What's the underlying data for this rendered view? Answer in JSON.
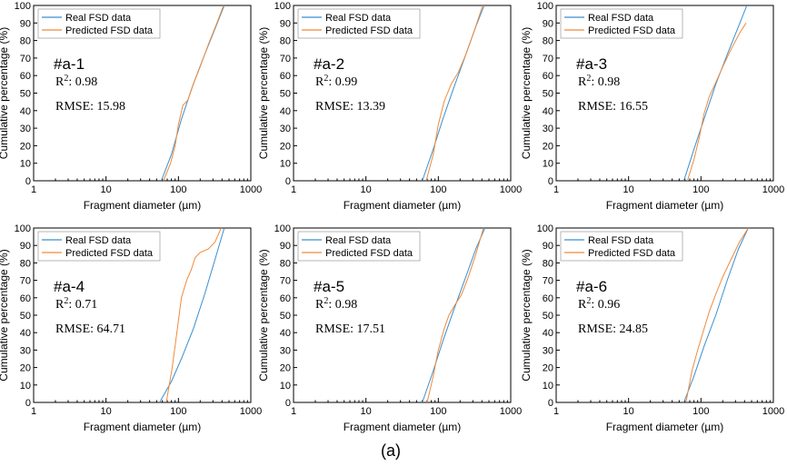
{
  "figure_caption": "(a)",
  "colors": {
    "real": "#3a8fd0",
    "predicted": "#ef8a3c",
    "axis": "#000000"
  },
  "chart_data": [
    {
      "type": "line",
      "id": "a-1",
      "tag": "#a-1",
      "r2_label": "R",
      "r2_sup": "2",
      "r2_value": ": 0.98",
      "rmse_text": "RMSE: 15.98",
      "xlabel": "Fragment diameter (µm)",
      "ylabel": "Cumulative percentage (%)",
      "xscale": "log",
      "xlim": [
        1,
        1000
      ],
      "ylim": [
        0,
        100
      ],
      "xticks": [
        1,
        10,
        100,
        1000
      ],
      "xtick_labels": [
        "1",
        "10",
        "100",
        "1000"
      ],
      "yticks": [
        0,
        10,
        20,
        30,
        40,
        50,
        60,
        70,
        80,
        90,
        100
      ],
      "legend_position": "top-left",
      "series": [
        {
          "name": "Real FSD data",
          "color": "#3a8fd0",
          "points": [
            [
              58,
              0
            ],
            [
              80,
              15
            ],
            [
              110,
              35
            ],
            [
              160,
              55
            ],
            [
              230,
              72
            ],
            [
              330,
              88
            ],
            [
              430,
              100
            ]
          ]
        },
        {
          "name": "Predicted FSD data",
          "color": "#ef8a3c",
          "points": [
            [
              62,
              0
            ],
            [
              78,
              10
            ],
            [
              90,
              20
            ],
            [
              100,
              32
            ],
            [
              115,
              43
            ],
            [
              135,
              46
            ],
            [
              160,
              55
            ],
            [
              200,
              65
            ],
            [
              260,
              78
            ],
            [
              340,
              90
            ],
            [
              420,
              100
            ]
          ]
        }
      ]
    },
    {
      "type": "line",
      "id": "a-2",
      "tag": "#a-2",
      "r2_label": "R",
      "r2_sup": "2",
      "r2_value": ": 0.99",
      "rmse_text": "RMSE: 13.39",
      "xlabel": "Fragment diameter (µm)",
      "ylabel": "Cumulative percentage (%)",
      "xscale": "log",
      "xlim": [
        1,
        1000
      ],
      "ylim": [
        0,
        100
      ],
      "xticks": [
        1,
        10,
        100,
        1000
      ],
      "xtick_labels": [
        "1",
        "10",
        "100",
        "1000"
      ],
      "yticks": [
        0,
        10,
        20,
        30,
        40,
        50,
        60,
        70,
        80,
        90,
        100
      ],
      "legend_position": "top-left",
      "series": [
        {
          "name": "Real FSD data",
          "color": "#3a8fd0",
          "points": [
            [
              60,
              0
            ],
            [
              85,
              18
            ],
            [
              115,
              35
            ],
            [
              160,
              52
            ],
            [
              230,
              70
            ],
            [
              330,
              88
            ],
            [
              430,
              100
            ]
          ]
        },
        {
          "name": "Predicted FSD data",
          "color": "#ef8a3c",
          "points": [
            [
              68,
              0
            ],
            [
              85,
              15
            ],
            [
              100,
              32
            ],
            [
              120,
              45
            ],
            [
              150,
              55
            ],
            [
              190,
              62
            ],
            [
              240,
              72
            ],
            [
              310,
              85
            ],
            [
              410,
              100
            ]
          ]
        }
      ]
    },
    {
      "type": "line",
      "id": "a-3",
      "tag": "#a-3",
      "r2_label": "R",
      "r2_sup": "2",
      "r2_value": ": 0.98",
      "rmse_text": "RMSE: 16.55",
      "xlabel": "Fragment diameter (µm)",
      "ylabel": "Cumulative percentage (%)",
      "xscale": "log",
      "xlim": [
        1,
        1000
      ],
      "ylim": [
        0,
        100
      ],
      "xticks": [
        1,
        10,
        100,
        1000
      ],
      "xtick_labels": [
        "1",
        "10",
        "100",
        "1000"
      ],
      "yticks": [
        0,
        10,
        20,
        30,
        40,
        50,
        60,
        70,
        80,
        90,
        100
      ],
      "legend_position": "top-left",
      "series": [
        {
          "name": "Real FSD data",
          "color": "#3a8fd0",
          "points": [
            [
              58,
              0
            ],
            [
              80,
              18
            ],
            [
              110,
              35
            ],
            [
              160,
              55
            ],
            [
              230,
              72
            ],
            [
              330,
              88
            ],
            [
              430,
              100
            ]
          ]
        },
        {
          "name": "Predicted FSD data",
          "color": "#ef8a3c",
          "points": [
            [
              65,
              0
            ],
            [
              80,
              12
            ],
            [
              95,
              25
            ],
            [
              110,
              38
            ],
            [
              130,
              48
            ],
            [
              160,
              56
            ],
            [
              200,
              65
            ],
            [
              260,
              75
            ],
            [
              350,
              85
            ],
            [
              420,
              90
            ]
          ]
        }
      ]
    },
    {
      "type": "line",
      "id": "a-4",
      "tag": "#a-4",
      "r2_label": "R",
      "r2_sup": "2",
      "r2_value": ": 0.71",
      "rmse_text": "RMSE: 64.71",
      "xlabel": "Fragment diameter (µm)",
      "ylabel": "Cumulative percentage (%)",
      "xscale": "log",
      "xlim": [
        1,
        1000
      ],
      "ylim": [
        0,
        100
      ],
      "xticks": [
        1,
        10,
        100,
        1000
      ],
      "xtick_labels": [
        "1",
        "10",
        "100",
        "1000"
      ],
      "yticks": [
        0,
        10,
        20,
        30,
        40,
        50,
        60,
        70,
        80,
        90,
        100
      ],
      "legend_position": "top-left",
      "series": [
        {
          "name": "Real FSD data",
          "color": "#3a8fd0",
          "points": [
            [
              55,
              0
            ],
            [
              80,
              12
            ],
            [
              110,
              25
            ],
            [
              160,
              42
            ],
            [
              230,
              62
            ],
            [
              320,
              82
            ],
            [
              430,
              100
            ]
          ]
        },
        {
          "name": "Predicted FSD data",
          "color": "#ef8a3c",
          "points": [
            [
              68,
              0
            ],
            [
              82,
              20
            ],
            [
              95,
              40
            ],
            [
              110,
              60
            ],
            [
              130,
              70
            ],
            [
              150,
              76
            ],
            [
              170,
              83
            ],
            [
              200,
              86
            ],
            [
              260,
              88
            ],
            [
              320,
              92
            ],
            [
              390,
              100
            ]
          ]
        }
      ]
    },
    {
      "type": "line",
      "id": "a-5",
      "tag": "#a-5",
      "r2_label": "R",
      "r2_sup": "2",
      "r2_value": ": 0.98",
      "rmse_text": "RMSE: 17.51",
      "xlabel": "Fragment diameter (µm)",
      "ylabel": "Cumulative percentage (%)",
      "xscale": "log",
      "xlim": [
        1,
        1000
      ],
      "ylim": [
        0,
        100
      ],
      "xticks": [
        1,
        10,
        100,
        1000
      ],
      "xtick_labels": [
        "1",
        "10",
        "100",
        "1000"
      ],
      "yticks": [
        0,
        10,
        20,
        30,
        40,
        50,
        60,
        70,
        80,
        90,
        100
      ],
      "legend_position": "top-left",
      "series": [
        {
          "name": "Real FSD data",
          "color": "#3a8fd0",
          "points": [
            [
              60,
              0
            ],
            [
              85,
              18
            ],
            [
              115,
              35
            ],
            [
              160,
              52
            ],
            [
              230,
              70
            ],
            [
              330,
              88
            ],
            [
              440,
              100
            ]
          ]
        },
        {
          "name": "Predicted FSD data",
          "color": "#ef8a3c",
          "points": [
            [
              70,
              0
            ],
            [
              85,
              15
            ],
            [
              100,
              30
            ],
            [
              120,
              42
            ],
            [
              140,
              50
            ],
            [
              170,
              56
            ],
            [
              210,
              62
            ],
            [
              260,
              72
            ],
            [
              330,
              85
            ],
            [
              420,
              100
            ]
          ]
        }
      ]
    },
    {
      "type": "line",
      "id": "a-6",
      "tag": "#a-6",
      "r2_label": "R",
      "r2_sup": "2",
      "r2_value": ": 0.96",
      "rmse_text": "RMSE: 24.85",
      "xlabel": "Fragment diameter (µm)",
      "ylabel": "Cumulative percentage (%)",
      "xscale": "log",
      "xlim": [
        1,
        1000
      ],
      "ylim": [
        0,
        100
      ],
      "xticks": [
        1,
        10,
        100,
        1000
      ],
      "xtick_labels": [
        "1",
        "10",
        "100",
        "1000"
      ],
      "yticks": [
        0,
        10,
        20,
        30,
        40,
        50,
        60,
        70,
        80,
        90,
        100
      ],
      "legend_position": "top-left",
      "series": [
        {
          "name": "Real FSD data",
          "color": "#3a8fd0",
          "points": [
            [
              58,
              0
            ],
            [
              80,
              15
            ],
            [
              110,
              32
            ],
            [
              160,
              50
            ],
            [
              230,
              70
            ],
            [
              330,
              88
            ],
            [
              450,
              100
            ]
          ]
        },
        {
          "name": "Predicted FSD data",
          "color": "#ef8a3c",
          "points": [
            [
              62,
              0
            ],
            [
              75,
              18
            ],
            [
              90,
              30
            ],
            [
              110,
              42
            ],
            [
              130,
              52
            ],
            [
              160,
              62
            ],
            [
              200,
              72
            ],
            [
              260,
              82
            ],
            [
              340,
              92
            ],
            [
              450,
              100
            ]
          ]
        }
      ]
    }
  ]
}
